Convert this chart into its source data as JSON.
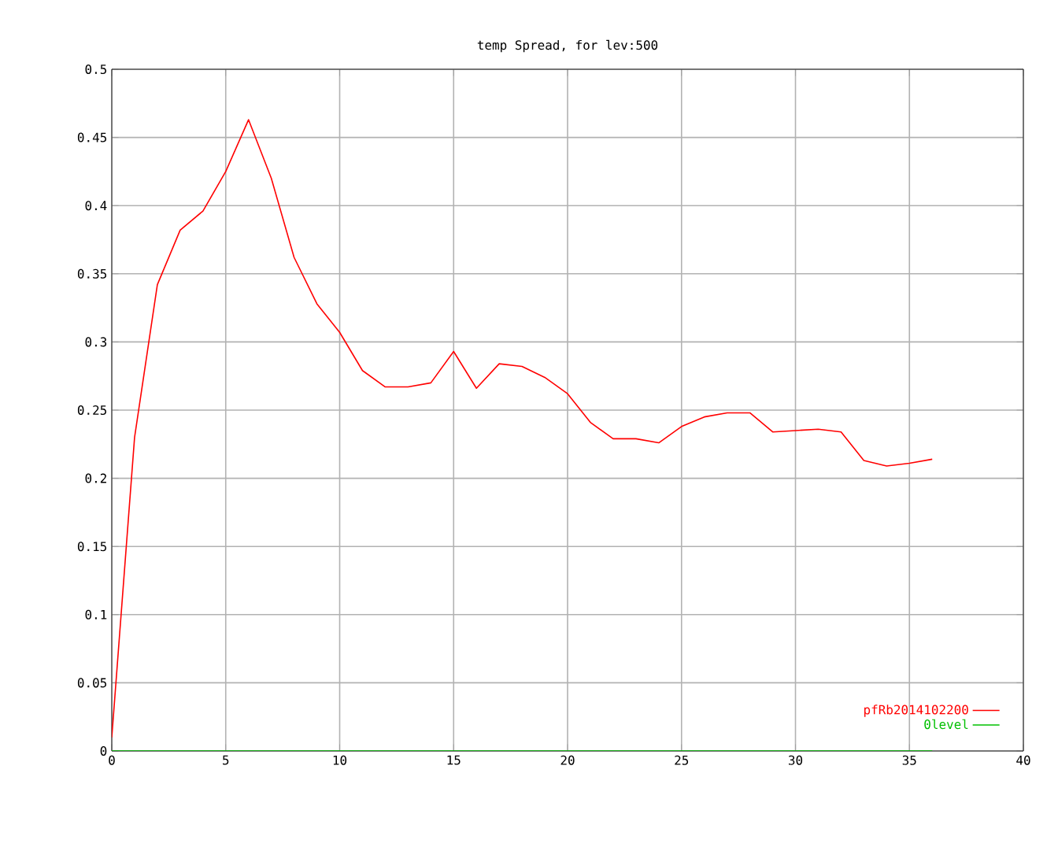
{
  "chart_data": {
    "type": "line",
    "title": "temp Spread, for lev:500",
    "x": [
      0,
      1,
      2,
      3,
      4,
      5,
      6,
      7,
      8,
      9,
      10,
      11,
      12,
      13,
      14,
      15,
      16,
      17,
      18,
      19,
      20,
      21,
      22,
      23,
      24,
      25,
      26,
      27,
      28,
      29,
      30,
      31,
      32,
      33,
      34,
      35,
      36
    ],
    "series": [
      {
        "name": "pfRb2014102200",
        "color": "#ff0000",
        "values": [
          0.01,
          0.23,
          0.342,
          0.382,
          0.396,
          0.425,
          0.463,
          0.42,
          0.362,
          0.328,
          0.307,
          0.279,
          0.267,
          0.267,
          0.27,
          0.293,
          0.266,
          0.284,
          0.282,
          0.274,
          0.262,
          0.241,
          0.229,
          0.229,
          0.226,
          0.238,
          0.245,
          0.248,
          0.248,
          0.234,
          0.235,
          0.236,
          0.234,
          0.213,
          0.209,
          0.211,
          0.214
        ]
      },
      {
        "name": "0level",
        "color": "#00c000",
        "values": [
          0,
          0,
          0,
          0,
          0,
          0,
          0,
          0,
          0,
          0,
          0,
          0,
          0,
          0,
          0,
          0,
          0,
          0,
          0,
          0,
          0,
          0,
          0,
          0,
          0,
          0,
          0,
          0,
          0,
          0,
          0,
          0,
          0,
          0,
          0,
          0,
          0
        ]
      }
    ],
    "xlim": [
      0,
      40
    ],
    "xticks": [
      0,
      5,
      10,
      15,
      20,
      25,
      30,
      35,
      40
    ],
    "ylim": [
      0,
      0.5
    ],
    "yticks": [
      0,
      0.05,
      0.1,
      0.15,
      0.2,
      0.25,
      0.3,
      0.35,
      0.4,
      0.45,
      0.5
    ],
    "grid": true,
    "legend": "bottom right",
    "marker": "none",
    "line_style": "solid"
  }
}
